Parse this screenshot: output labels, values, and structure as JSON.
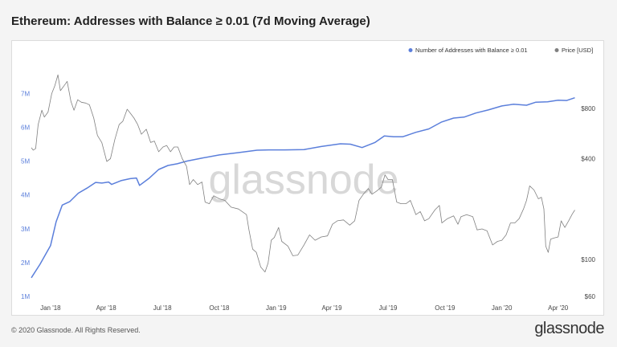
{
  "title": "Ethereum: Addresses with Balance ≥ 0.01 (7d Moving Average)",
  "footer": {
    "copyright": "© 2020 Glassnode. All Rights Reserved.",
    "brand": "glassnode"
  },
  "watermark": "glassnode",
  "colors": {
    "addresses": "#5b7fdb",
    "price": "#808080"
  },
  "chart_data": {
    "type": "line",
    "title": "Ethereum: Addresses with Balance ≥ 0.01 (7d Moving Average)",
    "legend_placement": "top-right",
    "grid": false,
    "x": {
      "type": "date",
      "range": [
        "2017-12-01",
        "2020-04-30"
      ],
      "ticks": [
        {
          "label": "Jan '18",
          "date": "2018-01-01"
        },
        {
          "label": "Apr '18",
          "date": "2018-04-01"
        },
        {
          "label": "Jul '18",
          "date": "2018-07-01"
        },
        {
          "label": "Oct '18",
          "date": "2018-10-01"
        },
        {
          "label": "Jan '19",
          "date": "2019-01-01"
        },
        {
          "label": "Apr '19",
          "date": "2019-04-01"
        },
        {
          "label": "Jul '19",
          "date": "2019-07-01"
        },
        {
          "label": "Oct '19",
          "date": "2019-10-01"
        },
        {
          "label": "Jan '20",
          "date": "2020-01-01"
        },
        {
          "label": "Apr '20",
          "date": "2020-04-01"
        }
      ]
    },
    "y_left": {
      "scale": "linear",
      "range": [
        1000000,
        7600000
      ],
      "ticks": [
        {
          "label": "1M",
          "value": 1000000
        },
        {
          "label": "2M",
          "value": 2000000
        },
        {
          "label": "3M",
          "value": 3000000
        },
        {
          "label": "4M",
          "value": 4000000
        },
        {
          "label": "5M",
          "value": 5000000
        },
        {
          "label": "6M",
          "value": 6000000
        },
        {
          "label": "7M",
          "value": 7000000
        }
      ]
    },
    "y_right": {
      "scale": "log",
      "range": [
        60,
        1300
      ],
      "ticks": [
        {
          "label": "$60",
          "value": 60
        },
        {
          "label": "$100",
          "value": 100
        },
        {
          "label": "$400",
          "value": 400
        },
        {
          "label": "$800",
          "value": 800
        }
      ]
    },
    "series": [
      {
        "name": "Number of Addresses with Balance ≥ 0.01",
        "axis": "left",
        "color": "#5b7fdb",
        "points": [
          [
            "2017-12-01",
            1550000
          ],
          [
            "2017-12-15",
            1950000
          ],
          [
            "2018-01-01",
            2500000
          ],
          [
            "2018-01-10",
            3200000
          ],
          [
            "2018-01-20",
            3700000
          ],
          [
            "2018-02-01",
            3800000
          ],
          [
            "2018-02-15",
            4050000
          ],
          [
            "2018-03-01",
            4200000
          ],
          [
            "2018-03-15",
            4370000
          ],
          [
            "2018-03-25",
            4350000
          ],
          [
            "2018-04-05",
            4380000
          ],
          [
            "2018-04-10",
            4310000
          ],
          [
            "2018-04-25",
            4420000
          ],
          [
            "2018-05-10",
            4480000
          ],
          [
            "2018-05-20",
            4500000
          ],
          [
            "2018-05-25",
            4280000
          ],
          [
            "2018-06-10",
            4500000
          ],
          [
            "2018-06-25",
            4750000
          ],
          [
            "2018-07-10",
            4870000
          ],
          [
            "2018-07-25",
            4920000
          ],
          [
            "2018-08-10",
            5000000
          ],
          [
            "2018-09-01",
            5080000
          ],
          [
            "2018-10-01",
            5180000
          ],
          [
            "2018-11-01",
            5250000
          ],
          [
            "2018-12-01",
            5320000
          ],
          [
            "2018-12-20",
            5330000
          ],
          [
            "2019-01-15",
            5330000
          ],
          [
            "2019-02-15",
            5340000
          ],
          [
            "2019-03-15",
            5430000
          ],
          [
            "2019-04-15",
            5510000
          ],
          [
            "2019-05-01",
            5500000
          ],
          [
            "2019-05-20",
            5400000
          ],
          [
            "2019-06-10",
            5550000
          ],
          [
            "2019-06-25",
            5740000
          ],
          [
            "2019-07-10",
            5720000
          ],
          [
            "2019-07-25",
            5720000
          ],
          [
            "2019-08-15",
            5850000
          ],
          [
            "2019-09-05",
            5950000
          ],
          [
            "2019-09-25",
            6150000
          ],
          [
            "2019-10-15",
            6270000
          ],
          [
            "2019-11-01",
            6300000
          ],
          [
            "2019-11-20",
            6420000
          ],
          [
            "2019-12-10",
            6510000
          ],
          [
            "2020-01-01",
            6630000
          ],
          [
            "2020-01-20",
            6680000
          ],
          [
            "2020-02-10",
            6650000
          ],
          [
            "2020-02-25",
            6740000
          ],
          [
            "2020-03-15",
            6750000
          ],
          [
            "2020-04-01",
            6800000
          ],
          [
            "2020-04-15",
            6790000
          ],
          [
            "2020-04-28",
            6870000
          ]
        ]
      },
      {
        "name": "Price [USD]",
        "axis": "right",
        "color": "#808080",
        "points": [
          [
            "2017-12-01",
            465
          ],
          [
            "2017-12-04",
            450
          ],
          [
            "2017-12-08",
            460
          ],
          [
            "2017-12-12",
            640
          ],
          [
            "2017-12-18",
            780
          ],
          [
            "2017-12-22",
            710
          ],
          [
            "2017-12-28",
            760
          ],
          [
            "2018-01-03",
            980
          ],
          [
            "2018-01-08",
            1090
          ],
          [
            "2018-01-13",
            1270
          ],
          [
            "2018-01-17",
            1020
          ],
          [
            "2018-01-22",
            1080
          ],
          [
            "2018-01-28",
            1160
          ],
          [
            "2018-02-03",
            880
          ],
          [
            "2018-02-08",
            780
          ],
          [
            "2018-02-14",
            900
          ],
          [
            "2018-02-20",
            870
          ],
          [
            "2018-02-27",
            860
          ],
          [
            "2018-03-05",
            840
          ],
          [
            "2018-03-12",
            700
          ],
          [
            "2018-03-18",
            550
          ],
          [
            "2018-03-25",
            500
          ],
          [
            "2018-04-02",
            385
          ],
          [
            "2018-04-08",
            400
          ],
          [
            "2018-04-15",
            520
          ],
          [
            "2018-04-22",
            640
          ],
          [
            "2018-04-28",
            670
          ],
          [
            "2018-05-05",
            790
          ],
          [
            "2018-05-10",
            750
          ],
          [
            "2018-05-16",
            700
          ],
          [
            "2018-05-22",
            640
          ],
          [
            "2018-05-28",
            560
          ],
          [
            "2018-06-05",
            600
          ],
          [
            "2018-06-12",
            500
          ],
          [
            "2018-06-18",
            510
          ],
          [
            "2018-06-25",
            440
          ],
          [
            "2018-07-02",
            470
          ],
          [
            "2018-07-08",
            480
          ],
          [
            "2018-07-14",
            440
          ],
          [
            "2018-07-20",
            470
          ],
          [
            "2018-07-26",
            470
          ],
          [
            "2018-08-02",
            400
          ],
          [
            "2018-08-09",
            360
          ],
          [
            "2018-08-14",
            280
          ],
          [
            "2018-08-20",
            300
          ],
          [
            "2018-08-27",
            280
          ],
          [
            "2018-09-03",
            290
          ],
          [
            "2018-09-08",
            220
          ],
          [
            "2018-09-15",
            215
          ],
          [
            "2018-09-22",
            240
          ],
          [
            "2018-10-01",
            230
          ],
          [
            "2018-10-10",
            225
          ],
          [
            "2018-10-20",
            205
          ],
          [
            "2018-11-01",
            200
          ],
          [
            "2018-11-14",
            185
          ],
          [
            "2018-11-18",
            150
          ],
          [
            "2018-11-24",
            115
          ],
          [
            "2018-11-30",
            110
          ],
          [
            "2018-12-07",
            90
          ],
          [
            "2018-12-14",
            84
          ],
          [
            "2018-12-19",
            95
          ],
          [
            "2018-12-24",
            130
          ],
          [
            "2018-12-29",
            135
          ],
          [
            "2019-01-05",
            155
          ],
          [
            "2019-01-10",
            128
          ],
          [
            "2019-01-20",
            120
          ],
          [
            "2019-01-28",
            105
          ],
          [
            "2019-02-05",
            106
          ],
          [
            "2019-02-15",
            122
          ],
          [
            "2019-02-24",
            140
          ],
          [
            "2019-03-05",
            130
          ],
          [
            "2019-03-15",
            136
          ],
          [
            "2019-03-25",
            138
          ],
          [
            "2019-04-02",
            162
          ],
          [
            "2019-04-10",
            170
          ],
          [
            "2019-04-20",
            172
          ],
          [
            "2019-04-30",
            160
          ],
          [
            "2019-05-08",
            170
          ],
          [
            "2019-05-15",
            225
          ],
          [
            "2019-05-22",
            245
          ],
          [
            "2019-05-30",
            265
          ],
          [
            "2019-06-05",
            245
          ],
          [
            "2019-06-12",
            255
          ],
          [
            "2019-06-20",
            270
          ],
          [
            "2019-06-26",
            320
          ],
          [
            "2019-07-01",
            300
          ],
          [
            "2019-07-08",
            300
          ],
          [
            "2019-07-15",
            220
          ],
          [
            "2019-07-22",
            215
          ],
          [
            "2019-07-30",
            215
          ],
          [
            "2019-08-06",
            225
          ],
          [
            "2019-08-15",
            185
          ],
          [
            "2019-08-22",
            193
          ],
          [
            "2019-08-29",
            170
          ],
          [
            "2019-09-05",
            175
          ],
          [
            "2019-09-15",
            198
          ],
          [
            "2019-09-22",
            210
          ],
          [
            "2019-09-26",
            165
          ],
          [
            "2019-10-05",
            175
          ],
          [
            "2019-10-15",
            182
          ],
          [
            "2019-10-22",
            162
          ],
          [
            "2019-10-27",
            180
          ],
          [
            "2019-11-05",
            185
          ],
          [
            "2019-11-15",
            180
          ],
          [
            "2019-11-22",
            150
          ],
          [
            "2019-11-30",
            152
          ],
          [
            "2019-12-08",
            148
          ],
          [
            "2019-12-17",
            122
          ],
          [
            "2019-12-25",
            128
          ],
          [
            "2020-01-01",
            130
          ],
          [
            "2020-01-08",
            140
          ],
          [
            "2020-01-15",
            165
          ],
          [
            "2020-01-22",
            165
          ],
          [
            "2020-01-29",
            175
          ],
          [
            "2020-02-05",
            200
          ],
          [
            "2020-02-10",
            225
          ],
          [
            "2020-02-15",
            275
          ],
          [
            "2020-02-22",
            260
          ],
          [
            "2020-02-29",
            230
          ],
          [
            "2020-03-05",
            235
          ],
          [
            "2020-03-09",
            200
          ],
          [
            "2020-03-12",
            120
          ],
          [
            "2020-03-16",
            110
          ],
          [
            "2020-03-20",
            132
          ],
          [
            "2020-03-25",
            134
          ],
          [
            "2020-04-01",
            136
          ],
          [
            "2020-04-06",
            170
          ],
          [
            "2020-04-12",
            155
          ],
          [
            "2020-04-18",
            170
          ],
          [
            "2020-04-24",
            187
          ],
          [
            "2020-04-28",
            197
          ]
        ]
      }
    ]
  }
}
